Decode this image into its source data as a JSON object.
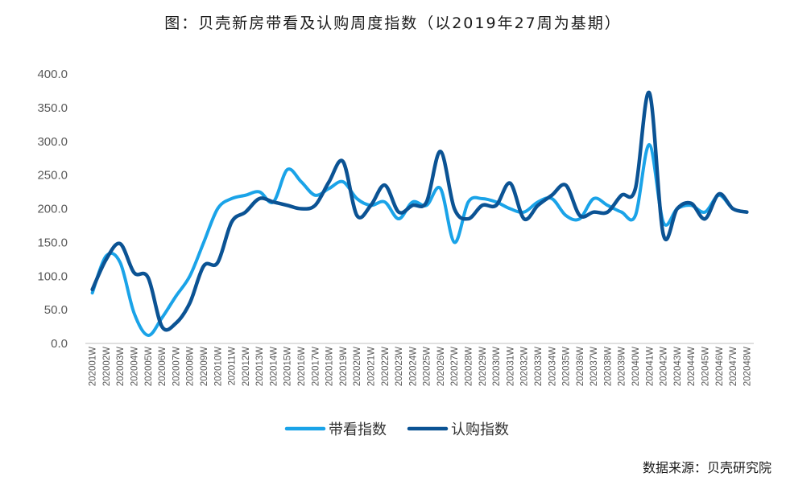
{
  "title": "图：贝壳新房带看及认购周度指数（以2019年27周为基期）",
  "source": "数据来源：贝壳研究院",
  "chart_data": {
    "type": "line",
    "title": "图：贝壳新房带看及认购周度指数（以2019年27周为基期）",
    "xlabel": "",
    "ylabel": "",
    "ylim": [
      0,
      400
    ],
    "yticks": [
      "0.0",
      "50.0",
      "100.0",
      "150.0",
      "200.0",
      "250.0",
      "300.0",
      "350.0",
      "400.0"
    ],
    "grid": false,
    "legend_position": "bottom",
    "categories": [
      "202001W",
      "202002W",
      "202003W",
      "202004W",
      "202005W",
      "202006W",
      "202007W",
      "202008W",
      "202009W",
      "202010W",
      "202011W",
      "202012W",
      "202013W",
      "202014W",
      "202015W",
      "202016W",
      "202017W",
      "202018W",
      "202019W",
      "202020W",
      "202021W",
      "202022W",
      "202023W",
      "202024W",
      "202025W",
      "202026W",
      "202027W",
      "202028W",
      "202029W",
      "202030W",
      "202031W",
      "202032W",
      "202033W",
      "202034W",
      "202035W",
      "202036W",
      "202037W",
      "202038W",
      "202039W",
      "202040W",
      "202041W",
      "202042W",
      "202043W",
      "202044W",
      "202045W",
      "202046W",
      "202047W",
      "202048W"
    ],
    "series": [
      {
        "name": "带看指数",
        "color": "#1AA3E8",
        "values": [
          75,
          130,
          120,
          45,
          12,
          38,
          70,
          100,
          150,
          200,
          215,
          220,
          225,
          210,
          258,
          240,
          220,
          230,
          240,
          215,
          205,
          210,
          185,
          210,
          205,
          230,
          150,
          210,
          215,
          210,
          200,
          195,
          210,
          215,
          190,
          185,
          215,
          205,
          195,
          190,
          295,
          180,
          200,
          205,
          195,
          220,
          200,
          195
        ]
      },
      {
        "name": "认购指数",
        "color": "#0B5394",
        "values": [
          80,
          125,
          148,
          105,
          98,
          25,
          30,
          60,
          115,
          120,
          180,
          195,
          215,
          210,
          205,
          200,
          205,
          240,
          270,
          190,
          205,
          235,
          195,
          205,
          210,
          285,
          200,
          185,
          205,
          205,
          238,
          185,
          205,
          220,
          235,
          190,
          195,
          195,
          220,
          230,
          372,
          162,
          200,
          208,
          185,
          222,
          200,
          195
        ]
      }
    ]
  }
}
